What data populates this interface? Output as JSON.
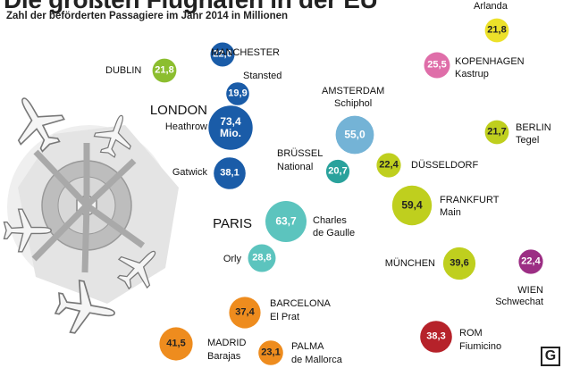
{
  "title": "Die größten Flughäfen in der EU",
  "subtitle": "Zahl der beförderten Passagiere im Jahr 2014 in Millionen",
  "logo": "G",
  "colors": {
    "london": "#1a5ca8",
    "paris": "#5cc4be",
    "amsterdam": "#74b3d6",
    "bruessel": "#2aa29c",
    "green": "#8cbe2f",
    "lime": "#bfcf1e",
    "yellow": "#ece12a",
    "pink": "#df6ea9",
    "purple": "#9c2e84",
    "orange": "#ee8c1e",
    "red": "#b6222a",
    "plane": "#777777",
    "terminal": "#bdbdbd"
  },
  "chart_data": {
    "type": "bubble",
    "title": "Die größten Flughäfen in der EU",
    "subtitle": "Zahl der beförderten Passagiere im Jahr 2014 in Millionen",
    "unit": "Millionen Passagiere",
    "airports": [
      {
        "id": "manchester",
        "value_label": "22,0",
        "value": 22.0,
        "name": "MANCHESTER",
        "color": "london"
      },
      {
        "id": "stansted",
        "value_label": "19,9",
        "value": 19.9,
        "name": "Stansted",
        "color": "london"
      },
      {
        "id": "heathrow",
        "value_label": "73,4",
        "value": 73.4,
        "unit_label": "Mio.",
        "name": "Heathrow",
        "city": "LONDON",
        "color": "london"
      },
      {
        "id": "gatwick",
        "value_label": "38,1",
        "value": 38.1,
        "name": "Gatwick",
        "color": "london"
      },
      {
        "id": "dublin",
        "value_label": "21,8",
        "value": 21.8,
        "name": "DUBLIN",
        "color": "green"
      },
      {
        "id": "amsterdam",
        "value_label": "55,0",
        "value": 55.0,
        "name": "AMSTERDAM",
        "sub": "Schiphol",
        "color": "amsterdam"
      },
      {
        "id": "bruessel",
        "value_label": "20,7",
        "value": 20.7,
        "name": "BRÜSSEL",
        "sub": "National",
        "color": "bruessel"
      },
      {
        "id": "cdg",
        "value_label": "63,7",
        "value": 63.7,
        "name": "Charles",
        "sub": "de Gaulle",
        "city": "PARIS",
        "color": "paris"
      },
      {
        "id": "orly",
        "value_label": "28,8",
        "value": 28.8,
        "name": "Orly",
        "color": "paris"
      },
      {
        "id": "arlanda",
        "value_label": "21,8",
        "value": 21.8,
        "name": "Arlanda",
        "color": "yellow"
      },
      {
        "id": "kopenhagen",
        "value_label": "25,5",
        "value": 25.5,
        "name": "KOPENHAGEN",
        "sub": "Kastrup",
        "color": "pink"
      },
      {
        "id": "berlin",
        "value_label": "21,7",
        "value": 21.7,
        "name": "BERLIN",
        "sub": "Tegel",
        "color": "lime"
      },
      {
        "id": "duesseldorf",
        "value_label": "22,4",
        "value": 22.4,
        "name": "DÜSSELDORF",
        "color": "lime"
      },
      {
        "id": "frankfurt",
        "value_label": "59,4",
        "value": 59.4,
        "name": "FRANKFURT",
        "sub": "Main",
        "color": "lime"
      },
      {
        "id": "muenchen",
        "value_label": "39,6",
        "value": 39.6,
        "name": "MÜNCHEN",
        "color": "lime"
      },
      {
        "id": "wien",
        "value_label": "22,4",
        "value": 22.4,
        "name": "WIEN",
        "sub": "Schwechat",
        "color": "purple"
      },
      {
        "id": "barcelona",
        "value_label": "37,4",
        "value": 37.4,
        "name": "BARCELONA",
        "sub": "El Prat",
        "color": "orange"
      },
      {
        "id": "madrid",
        "value_label": "41,5",
        "value": 41.5,
        "name": "MADRID",
        "sub": "Barajas",
        "color": "orange"
      },
      {
        "id": "palma",
        "value_label": "23,1",
        "value": 23.1,
        "name": "PALMA",
        "sub": "de Mallorca",
        "color": "orange"
      },
      {
        "id": "rom",
        "value_label": "38,3",
        "value": 38.3,
        "name": "ROM",
        "sub": "Fiumicino",
        "color": "red"
      }
    ]
  }
}
